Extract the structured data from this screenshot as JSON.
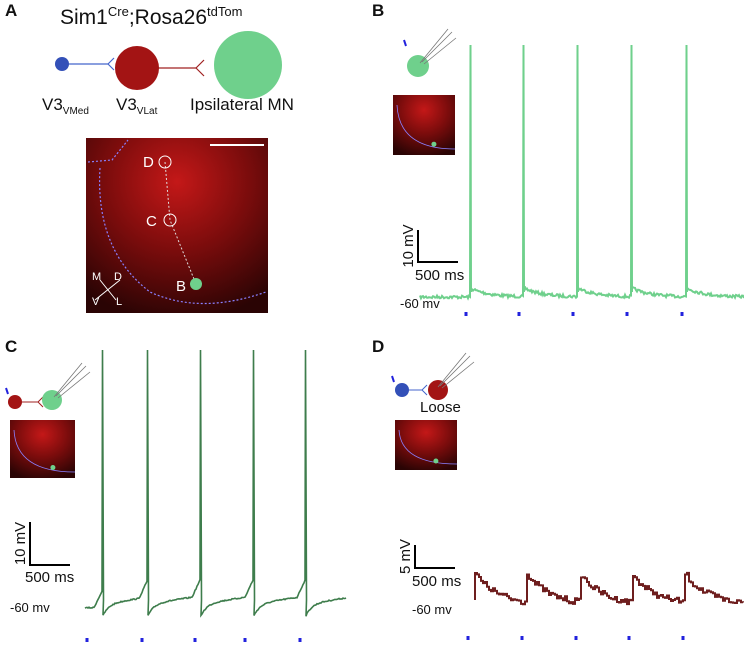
{
  "panel_a": {
    "label": "A",
    "title": {
      "base": "Sim1",
      "sup1": "Cre",
      "mid": ";Rosa26",
      "sup2": "tdTom"
    },
    "cells": [
      {
        "name": "V3",
        "sub": "VMed"
      },
      {
        "name": "V3",
        "sub": "VLat"
      },
      {
        "name": "Ipsilateral MN"
      }
    ],
    "image_labels": [
      "D",
      "C",
      "B"
    ],
    "orientation": [
      "M",
      "D",
      "V",
      "L"
    ]
  },
  "panel_b": {
    "label": "B",
    "scale_y": "10 mV",
    "scale_x": "500 ms",
    "baseline": "-60 mv"
  },
  "panel_c": {
    "label": "C",
    "scale_y": "10 mV",
    "scale_x": "500 ms",
    "baseline": "-60 mv"
  },
  "panel_d": {
    "label": "D",
    "tag": "Loose",
    "scale_y": "5 mV",
    "scale_x": "500 ms",
    "baseline": "-60 mv"
  }
}
